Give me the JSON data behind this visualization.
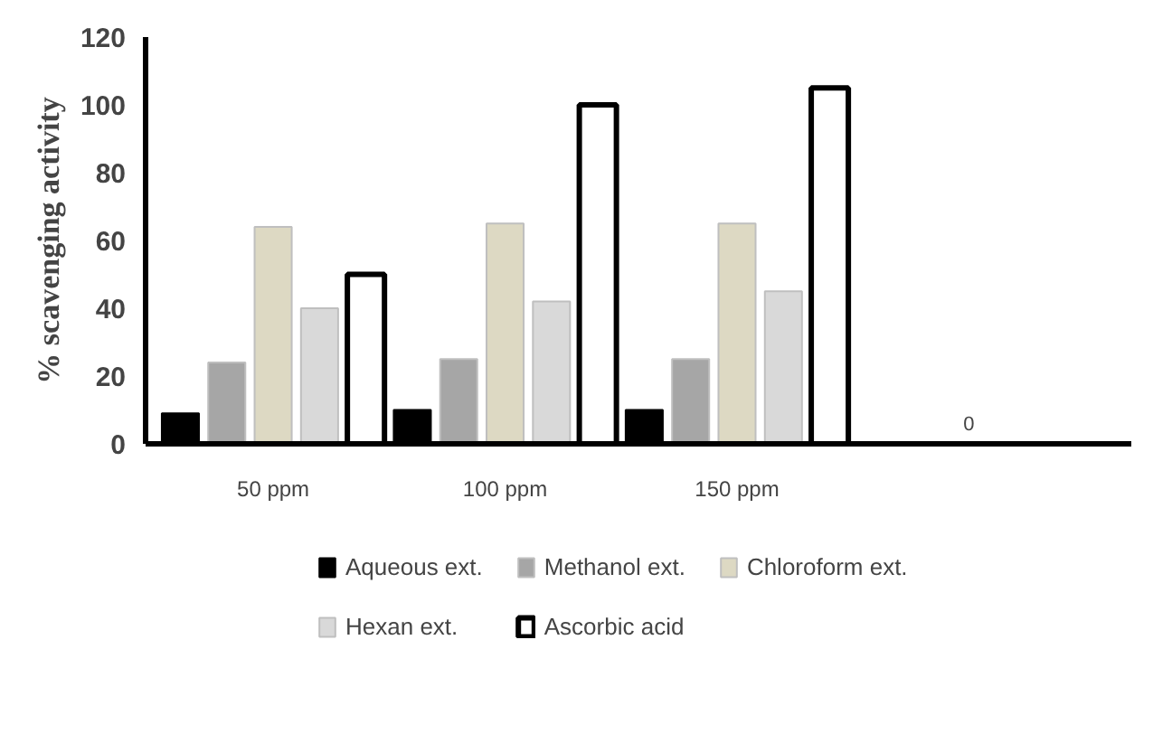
{
  "chart_data": {
    "type": "bar",
    "ylabel": "% scavenging activity",
    "categories": [
      "50 ppm",
      "100 ppm",
      "150 ppm",
      null
    ],
    "series": [
      {
        "name": "Aqueous ext.",
        "color": "#000000",
        "values": [
          9,
          10,
          10,
          null
        ]
      },
      {
        "name": "Methanol ext.",
        "color": "#a6a6a6",
        "values": [
          24,
          25,
          25,
          null
        ]
      },
      {
        "name": "Chloroform ext.",
        "color": "#ddd9c3",
        "values": [
          64,
          65,
          65,
          null
        ]
      },
      {
        "name": "Hexan ext.",
        "color": "#d9d9d9",
        "values": [
          40,
          42,
          45,
          null
        ]
      },
      {
        "name": "Ascorbic acid",
        "color": "#ffffff",
        "values": [
          50,
          100,
          105,
          null
        ]
      }
    ],
    "ylim": [
      0,
      120
    ],
    "yticks": [
      0,
      20,
      40,
      60,
      80,
      100,
      120
    ],
    "annotations": [
      "0"
    ],
    "grid": false,
    "legend": "bottom"
  }
}
